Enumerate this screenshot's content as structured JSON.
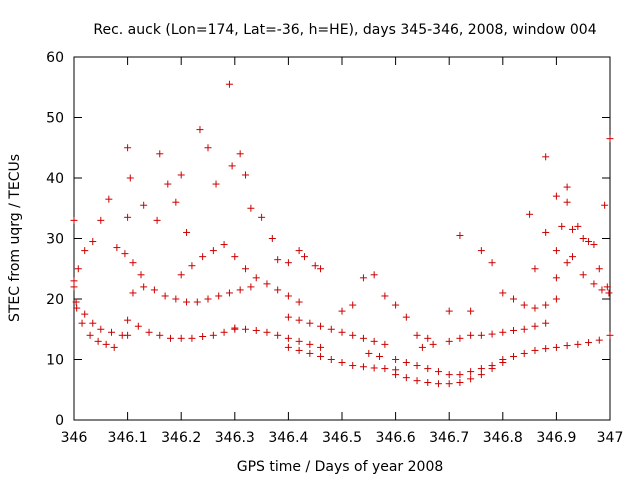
{
  "chart_data": {
    "type": "scatter",
    "title": "Rec. auck (Lon=174, Lat=-36, h=HE), days 345-346, 2008, window 004",
    "xlabel": "GPS time / Days of year 2008",
    "ylabel": "STEC from uqrg / TECUs",
    "xlim": [
      346,
      347
    ],
    "ylim": [
      0,
      60
    ],
    "xticks": [
      346,
      346.1,
      346.2,
      346.3,
      346.4,
      346.5,
      346.6,
      346.7,
      346.8,
      346.9,
      347
    ],
    "xtick_labels": [
      "346",
      "346.1",
      "346.2",
      "346.3",
      "346.4",
      "346.5",
      "346.6",
      "346.7",
      "346.8",
      "346.9",
      "347"
    ],
    "yticks": [
      0,
      10,
      20,
      30,
      40,
      50,
      60
    ],
    "ytick_labels": [
      "0",
      "10",
      "20",
      "30",
      "40",
      "50",
      "60"
    ],
    "grid": false,
    "marker": "+",
    "color": "#cc0000",
    "series": [
      {
        "name": "STEC",
        "x": [
          346.0,
          346.0,
          346.004,
          346.015,
          346.03,
          346.045,
          346.06,
          346.075,
          346.0,
          346.008,
          346.02,
          346.035,
          346.05,
          346.065,
          346.08,
          346.095,
          346.11,
          346.125,
          346.005,
          346.02,
          346.035,
          346.05,
          346.07,
          346.09,
          346.1,
          346.1,
          346.1,
          346.105,
          346.13,
          346.155,
          346.16,
          346.175,
          346.19,
          346.1,
          346.12,
          346.14,
          346.16,
          346.18,
          346.2,
          346.22,
          346.24,
          346.26,
          346.28,
          346.3,
          346.11,
          346.13,
          346.15,
          346.17,
          346.19,
          346.21,
          346.23,
          346.25,
          346.27,
          346.29,
          346.31,
          346.33,
          346.2,
          346.21,
          346.235,
          346.25,
          346.265,
          346.29,
          346.295,
          346.31,
          346.32,
          346.33,
          346.2,
          346.22,
          346.24,
          346.26,
          346.28,
          346.3,
          346.32,
          346.34,
          346.36,
          346.38,
          346.4,
          346.42,
          346.3,
          346.32,
          346.34,
          346.36,
          346.38,
          346.4,
          346.42,
          346.44,
          346.46,
          346.35,
          346.37,
          346.38,
          346.4,
          346.42,
          346.43,
          346.45,
          346.46,
          346.4,
          346.42,
          346.44,
          346.46,
          346.48,
          346.5,
          346.52,
          346.54,
          346.56,
          346.58,
          346.4,
          346.42,
          346.44,
          346.46,
          346.48,
          346.5,
          346.52,
          346.54,
          346.56,
          346.58,
          346.6,
          346.5,
          346.52,
          346.54,
          346.56,
          346.58,
          346.6,
          346.62,
          346.64,
          346.66,
          346.55,
          346.57,
          346.6,
          346.62,
          346.64,
          346.66,
          346.68,
          346.7,
          346.72,
          346.74,
          346.76,
          346.78,
          346.6,
          346.62,
          346.64,
          346.66,
          346.68,
          346.7,
          346.72,
          346.74,
          346.76,
          346.78,
          346.8,
          346.65,
          346.67,
          346.7,
          346.72,
          346.74,
          346.76,
          346.78,
          346.8,
          346.82,
          346.84,
          346.86,
          346.88,
          346.7,
          346.72,
          346.74,
          346.76,
          346.78,
          346.8,
          346.82,
          346.84,
          346.86,
          346.88,
          346.9,
          346.8,
          346.82,
          346.84,
          346.86,
          346.88,
          346.9,
          346.92,
          346.94,
          346.96,
          346.98,
          347.0,
          346.85,
          346.86,
          346.88,
          346.9,
          346.91,
          346.92,
          346.93,
          346.95,
          346.97,
          346.99,
          347.0,
          346.88,
          346.9,
          346.92,
          346.94,
          346.96,
          346.98,
          346.995,
          346.9,
          346.92,
          346.93,
          346.95,
          346.97,
          346.985,
          346.998
        ],
        "y": [
          33.0,
          23.0,
          19.5,
          16.0,
          14.0,
          13.0,
          12.5,
          12.0,
          22.0,
          25.0,
          28.0,
          29.5,
          33.0,
          36.5,
          28.5,
          27.5,
          26.0,
          24.0,
          18.5,
          17.5,
          16.0,
          15.0,
          14.5,
          14.0,
          14.0,
          45.0,
          33.5,
          40.0,
          35.5,
          33.0,
          44.0,
          39.0,
          36.0,
          16.5,
          15.5,
          14.5,
          14.0,
          13.5,
          13.5,
          13.5,
          13.8,
          14.0,
          14.5,
          15.0,
          21.0,
          22.0,
          21.5,
          20.5,
          20.0,
          19.5,
          19.5,
          20.0,
          20.5,
          21.0,
          21.5,
          22.0,
          40.5,
          31.0,
          48.0,
          45.0,
          39.0,
          55.5,
          42.0,
          44.0,
          40.5,
          35.0,
          24.0,
          25.5,
          27.0,
          28.0,
          29.0,
          27.0,
          25.0,
          23.5,
          22.5,
          21.5,
          20.5,
          19.5,
          15.2,
          15.0,
          14.8,
          14.5,
          14.0,
          13.5,
          13.0,
          12.5,
          12.0,
          33.5,
          30.0,
          26.5,
          26.0,
          28.0,
          27.0,
          25.5,
          25.0,
          17.0,
          16.5,
          16.0,
          15.5,
          15.0,
          14.5,
          14.0,
          13.5,
          13.0,
          12.5,
          12.0,
          11.5,
          11.0,
          10.5,
          10.0,
          9.5,
          9.0,
          8.8,
          8.6,
          8.5,
          8.3,
          18.0,
          19.0,
          23.5,
          24.0,
          20.5,
          19.0,
          17.0,
          14.0,
          13.5,
          11.0,
          10.5,
          10.0,
          9.5,
          9.0,
          8.5,
          8.0,
          7.5,
          7.5,
          8.0,
          8.5,
          9.0,
          7.5,
          7.0,
          6.5,
          6.2,
          6.0,
          6.0,
          6.2,
          6.8,
          7.5,
          8.5,
          9.5,
          12.0,
          12.5,
          13.0,
          13.5,
          14.0,
          14.0,
          14.2,
          14.5,
          14.8,
          15.0,
          15.5,
          16.0,
          18.0,
          30.5,
          18.0,
          28.0,
          26.0,
          21.0,
          20.0,
          19.0,
          18.5,
          19.0,
          20.0,
          10.0,
          10.5,
          11.0,
          11.5,
          11.8,
          12.0,
          12.3,
          12.5,
          12.8,
          13.2,
          14.0,
          34.0,
          25.0,
          31.0,
          28.0,
          32.0,
          36.0,
          31.5,
          30.0,
          29.0,
          35.5,
          46.5,
          43.5,
          37.0,
          38.5,
          32.0,
          29.5,
          25.0,
          22.0,
          23.5,
          26.0,
          27.0,
          24.0,
          22.5,
          21.5,
          21.0
        ]
      }
    ]
  }
}
